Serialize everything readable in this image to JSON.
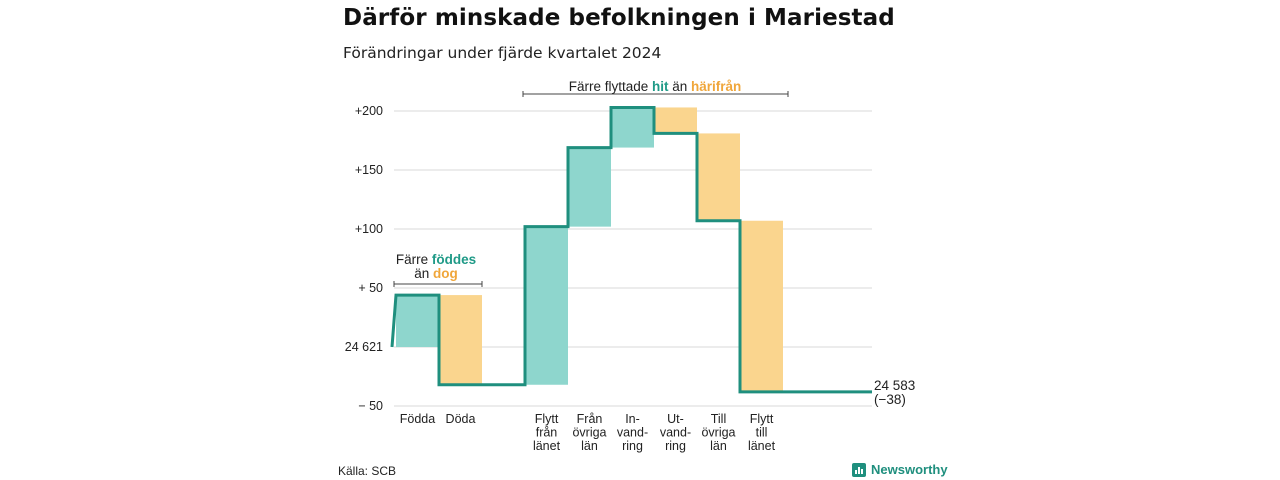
{
  "title": "Därför minskade befolkningen i Mariestad",
  "subtitle": "Förändringar under fjärde kvartalet 2024",
  "source": "Källa: SCB",
  "brand": "Newsworthy",
  "brand_icon": "bar-chart-icon",
  "colors": {
    "increase": "#8ed6cd",
    "decrease": "#fad58e",
    "line": "#1f8f7e",
    "grid": "#d9d9d9"
  },
  "annotations": {
    "births": {
      "prefix": "Färre ",
      "green": "föddes",
      "line2_prefix": "än ",
      "orange": "dog"
    },
    "moves": {
      "prefix": "Färre flyttade ",
      "green": "hit",
      "mid": " än ",
      "orange": "härifrån"
    }
  },
  "chart_data": {
    "type": "waterfall",
    "title": "Därför minskade befolkningen i Mariestad",
    "subtitle": "Förändringar under fjärde kvartalet 2024",
    "start_value": 24621,
    "start_label": "24 621",
    "end_label": [
      "24 583",
      "(−38)"
    ],
    "y_ticks": [
      {
        "value": 200,
        "label": "+200"
      },
      {
        "value": 150,
        "label": "+150"
      },
      {
        "value": 100,
        "label": "+100"
      },
      {
        "value": 50,
        "label": "+ 50"
      },
      {
        "value": 0,
        "label": "24 621"
      },
      {
        "value": -50,
        "label": "− 50"
      }
    ],
    "ylim": [
      -50,
      200
    ],
    "grid": true,
    "steps": [
      {
        "category": [
          "Födda"
        ],
        "delta": 44
      },
      {
        "category": [
          "Döda"
        ],
        "delta": -76
      },
      {
        "category": [],
        "delta": 0
      },
      {
        "category": [
          "Flytt",
          "från",
          "länet"
        ],
        "delta": 134
      },
      {
        "category": [
          "Från",
          "övriga",
          "län"
        ],
        "delta": 67
      },
      {
        "category": [
          "In-",
          "vand-",
          "ring"
        ],
        "delta": 34
      },
      {
        "category": [
          "Ut-",
          "vand-",
          "ring"
        ],
        "delta": -22
      },
      {
        "category": [
          "Till",
          "övriga",
          "län"
        ],
        "delta": -74
      },
      {
        "category": [
          "Flytt",
          "till",
          "länet"
        ],
        "delta": -145
      }
    ],
    "end_value": 24583,
    "net_change": -38
  }
}
